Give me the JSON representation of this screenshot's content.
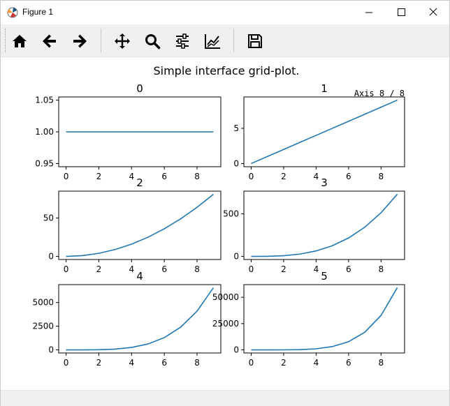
{
  "window": {
    "title": "Figure 1",
    "controls": {
      "minimize_icon": "minimize-icon",
      "maximize_icon": "maximize-icon",
      "close_icon": "close-icon"
    }
  },
  "toolbar": {
    "buttons": [
      {
        "name": "home",
        "icon": "home-icon"
      },
      {
        "name": "back",
        "icon": "back-arrow-icon"
      },
      {
        "name": "forward",
        "icon": "forward-arrow-icon"
      },
      {
        "name": "pan",
        "icon": "move-icon"
      },
      {
        "name": "zoom",
        "icon": "magnifier-icon"
      },
      {
        "name": "configure-subplots",
        "icon": "sliders-icon"
      },
      {
        "name": "edit-axis",
        "icon": "line-chart-icon"
      },
      {
        "name": "save",
        "icon": "floppy-disk-icon"
      }
    ]
  },
  "figure": {
    "suptitle": "Simple interface grid-plot.",
    "axis_indicator": "Axis 8 / 8"
  },
  "chart_data": [
    {
      "type": "line",
      "title": "0",
      "x": [
        0,
        1,
        2,
        3,
        4,
        5,
        6,
        7,
        8,
        9
      ],
      "series": [
        {
          "values": [
            1,
            1,
            1,
            1,
            1,
            1,
            1,
            1,
            1,
            1
          ]
        }
      ],
      "xticks": [
        "0",
        "2",
        "4",
        "6",
        "8"
      ],
      "yticks": [
        "0.95",
        "1.00",
        "1.05"
      ],
      "xlim": [
        -0.45,
        9.45
      ],
      "ylim": [
        0.945,
        1.055
      ],
      "color": "#1f77b4"
    },
    {
      "type": "line",
      "title": "1",
      "x": [
        0,
        1,
        2,
        3,
        4,
        5,
        6,
        7,
        8,
        9
      ],
      "series": [
        {
          "values": [
            0,
            1,
            2,
            3,
            4,
            5,
            6,
            7,
            8,
            9
          ]
        }
      ],
      "xticks": [
        "0",
        "2",
        "4",
        "6",
        "8"
      ],
      "yticks": [
        "0",
        "5"
      ],
      "xlim": [
        -0.45,
        9.45
      ],
      "ylim": [
        -0.45,
        9.45
      ],
      "color": "#1f77b4"
    },
    {
      "type": "line",
      "title": "2",
      "x": [
        0,
        1,
        2,
        3,
        4,
        5,
        6,
        7,
        8,
        9
      ],
      "series": [
        {
          "values": [
            0,
            1,
            4,
            9,
            16,
            25,
            36,
            49,
            64,
            81
          ]
        }
      ],
      "xticks": [
        "0",
        "2",
        "4",
        "6",
        "8"
      ],
      "yticks": [
        "0",
        "50"
      ],
      "xlim": [
        -0.45,
        9.45
      ],
      "ylim": [
        -4.05,
        85.05
      ],
      "color": "#1f77b4"
    },
    {
      "type": "line",
      "title": "3",
      "x": [
        0,
        1,
        2,
        3,
        4,
        5,
        6,
        7,
        8,
        9
      ],
      "series": [
        {
          "values": [
            0,
            1,
            8,
            27,
            64,
            125,
            216,
            343,
            512,
            729
          ]
        }
      ],
      "xticks": [
        "0",
        "2",
        "4",
        "6",
        "8"
      ],
      "yticks": [
        "0",
        "500"
      ],
      "xlim": [
        -0.45,
        9.45
      ],
      "ylim": [
        -36.45,
        765.45
      ],
      "color": "#1f77b4"
    },
    {
      "type": "line",
      "title": "4",
      "x": [
        0,
        1,
        2,
        3,
        4,
        5,
        6,
        7,
        8,
        9
      ],
      "series": [
        {
          "values": [
            0,
            1,
            16,
            81,
            256,
            625,
            1296,
            2401,
            4096,
            6561
          ]
        }
      ],
      "xticks": [
        "0",
        "2",
        "4",
        "6",
        "8"
      ],
      "yticks": [
        "0",
        "2500",
        "5000"
      ],
      "xlim": [
        -0.45,
        9.45
      ],
      "ylim": [
        -328.05,
        6889.05
      ],
      "color": "#1f77b4"
    },
    {
      "type": "line",
      "title": "5",
      "x": [
        0,
        1,
        2,
        3,
        4,
        5,
        6,
        7,
        8,
        9
      ],
      "series": [
        {
          "values": [
            0,
            1,
            32,
            243,
            1024,
            3125,
            7776,
            16807,
            32768,
            59049
          ]
        }
      ],
      "xticks": [
        "0",
        "2",
        "4",
        "6",
        "8"
      ],
      "yticks": [
        "0",
        "25000",
        "50000"
      ],
      "xlim": [
        -0.45,
        9.45
      ],
      "ylim": [
        -2952.45,
        62001.45
      ],
      "color": "#1f77b4"
    }
  ]
}
